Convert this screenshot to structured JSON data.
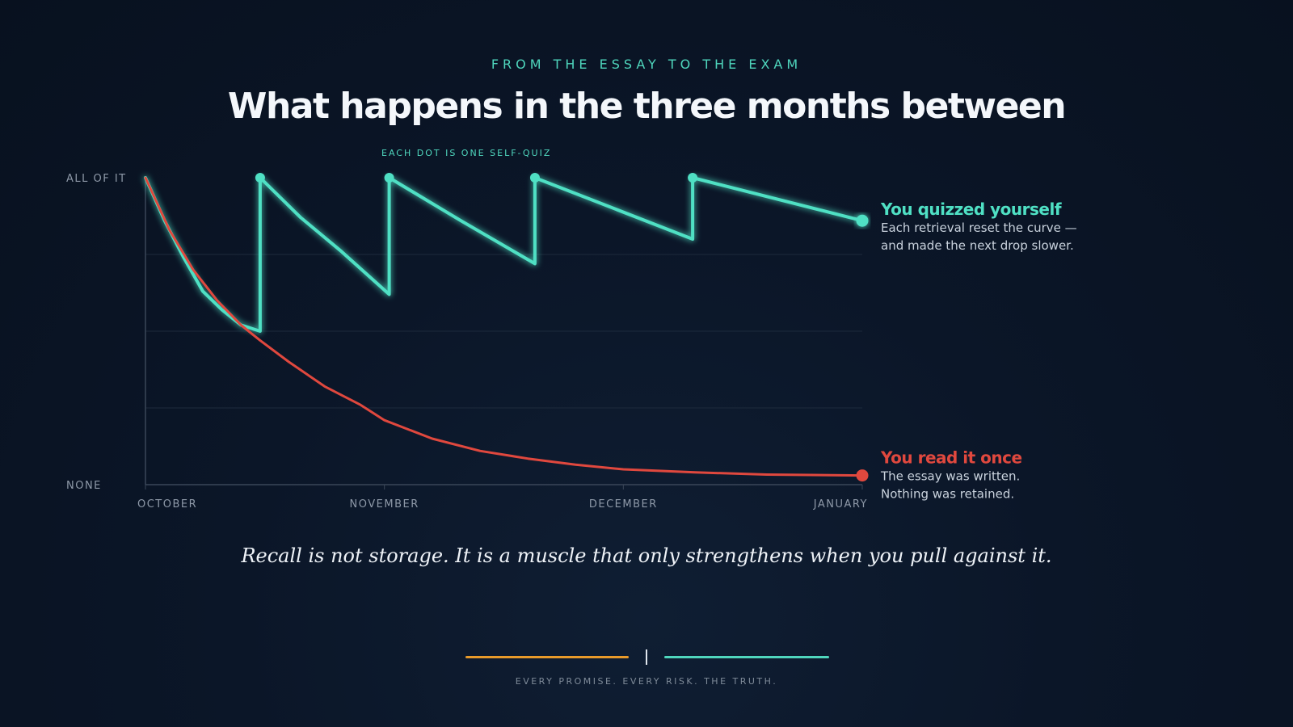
{
  "header": {
    "eyebrow": "FROM THE ESSAY TO THE EXAM",
    "title": "What happens in the three months between"
  },
  "chart_data": {
    "type": "line",
    "annotation": "EACH DOT IS ONE SELF-QUIZ",
    "y_tick_labels": [
      "ALL OF IT",
      "NONE"
    ],
    "x_tick_labels": [
      "OCTOBER",
      "NOVEMBER",
      "DECEMBER",
      "JANUARY"
    ],
    "xlim": [
      0,
      3
    ],
    "ylim": [
      0,
      1
    ],
    "grid": true,
    "series": [
      {
        "name": "You quizzed yourself",
        "description_lines": [
          "Each retrieval reset the curve —",
          "and made the next drop slower."
        ],
        "color": "#4fe0c4",
        "points": [
          [
            0.0,
            1.0
          ],
          [
            0.08,
            0.86
          ],
          [
            0.16,
            0.74
          ],
          [
            0.24,
            0.63
          ],
          [
            0.32,
            0.57
          ],
          [
            0.4,
            0.52
          ],
          [
            0.48,
            0.5
          ],
          [
            0.48,
            1.0
          ],
          [
            0.65,
            0.87
          ],
          [
            0.82,
            0.76
          ],
          [
            1.02,
            0.62
          ],
          [
            1.02,
            1.0
          ],
          [
            1.32,
            0.86
          ],
          [
            1.63,
            0.72
          ],
          [
            1.63,
            1.0
          ],
          [
            2.29,
            0.8
          ],
          [
            2.29,
            1.0
          ],
          [
            3.0,
            0.86
          ]
        ],
        "quiz_points": [
          [
            0.48,
            1.0
          ],
          [
            1.02,
            1.0
          ],
          [
            1.63,
            1.0
          ],
          [
            2.29,
            1.0
          ]
        ],
        "end_point": [
          3.0,
          0.86
        ]
      },
      {
        "name": "You read it once",
        "description_lines": [
          "The essay was written.",
          "Nothing was retained."
        ],
        "color": "#e0483e",
        "points": [
          [
            0.0,
            1.0
          ],
          [
            0.1,
            0.83
          ],
          [
            0.2,
            0.7
          ],
          [
            0.3,
            0.6
          ],
          [
            0.4,
            0.52
          ],
          [
            0.48,
            0.47
          ],
          [
            0.6,
            0.4
          ],
          [
            0.75,
            0.32
          ],
          [
            0.9,
            0.26
          ],
          [
            1.0,
            0.21
          ],
          [
            1.2,
            0.15
          ],
          [
            1.4,
            0.11
          ],
          [
            1.6,
            0.085
          ],
          [
            1.8,
            0.065
          ],
          [
            2.0,
            0.05
          ],
          [
            2.3,
            0.04
          ],
          [
            2.6,
            0.033
          ],
          [
            3.0,
            0.03
          ]
        ],
        "end_point": [
          3.0,
          0.03
        ]
      }
    ]
  },
  "quote": "Recall is not storage. It is a muscle that only strengthens when you pull against it.",
  "footer": {
    "tagline": "EVERY PROMISE. EVERY RISK. THE TRUTH.",
    "left_color": "#e89a2a",
    "right_color": "#4fd6bd"
  }
}
